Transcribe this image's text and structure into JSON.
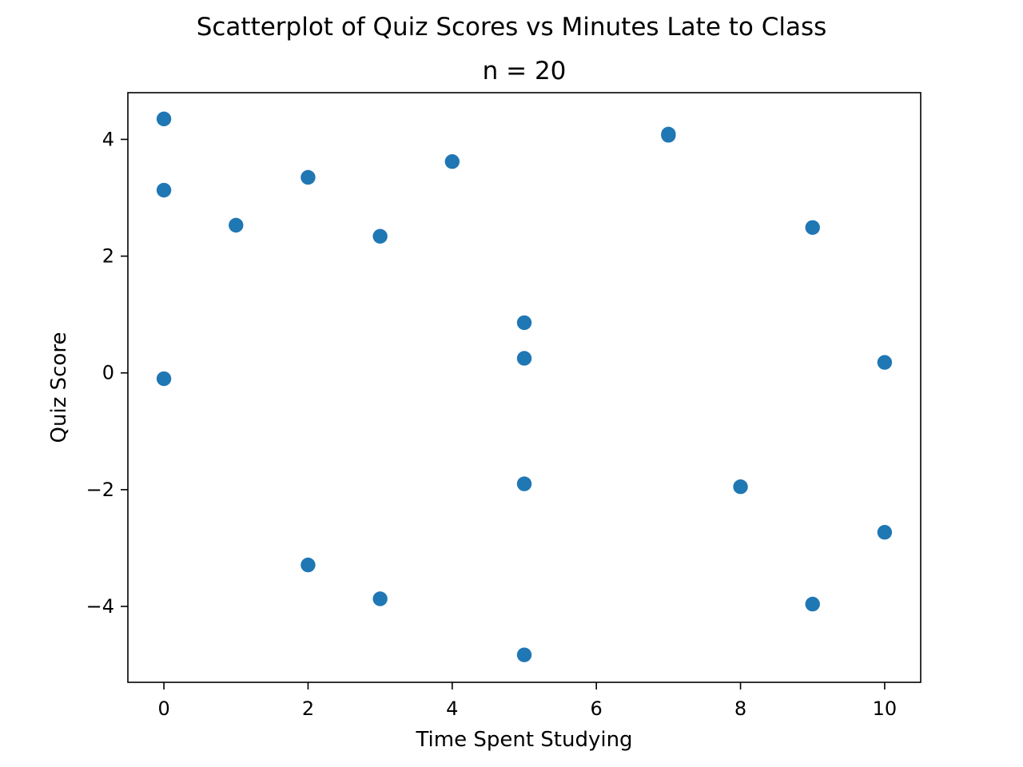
{
  "chart_data": {
    "type": "scatter",
    "title": "Scatterplot of Quiz Scores vs Minutes Late to Class",
    "subtitle": "n = 20",
    "xlabel": "Time Spent Studying",
    "ylabel": "Quiz Score",
    "xlim": [
      -0.5,
      10.5
    ],
    "ylim": [
      -5.3,
      4.8
    ],
    "xticks": [
      0,
      2,
      4,
      6,
      8,
      10
    ],
    "xtick_labels": [
      "0",
      "2",
      "4",
      "6",
      "8",
      "10"
    ],
    "yticks": [
      -4,
      -2,
      0,
      2,
      4
    ],
    "ytick_labels": [
      "−4",
      "−2",
      "0",
      "2",
      "4"
    ],
    "grid": false,
    "marker_color": "#1f77b4",
    "points": [
      {
        "x": 0,
        "y": 4.35
      },
      {
        "x": 0,
        "y": 3.13
      },
      {
        "x": 0,
        "y": -0.1
      },
      {
        "x": 1,
        "y": 2.53
      },
      {
        "x": 2,
        "y": 3.35
      },
      {
        "x": 2,
        "y": -3.29
      },
      {
        "x": 3,
        "y": 2.34
      },
      {
        "x": 3,
        "y": -3.87
      },
      {
        "x": 4,
        "y": 3.62
      },
      {
        "x": 5,
        "y": 0.86
      },
      {
        "x": 5,
        "y": 0.25
      },
      {
        "x": 5,
        "y": -1.9
      },
      {
        "x": 5,
        "y": -4.83
      },
      {
        "x": 7,
        "y": 4.09
      },
      {
        "x": 7,
        "y": 4.07
      },
      {
        "x": 8,
        "y": -1.95
      },
      {
        "x": 9,
        "y": 2.49
      },
      {
        "x": 9,
        "y": -3.96
      },
      {
        "x": 10,
        "y": 0.18
      },
      {
        "x": 10,
        "y": -2.73
      }
    ]
  }
}
